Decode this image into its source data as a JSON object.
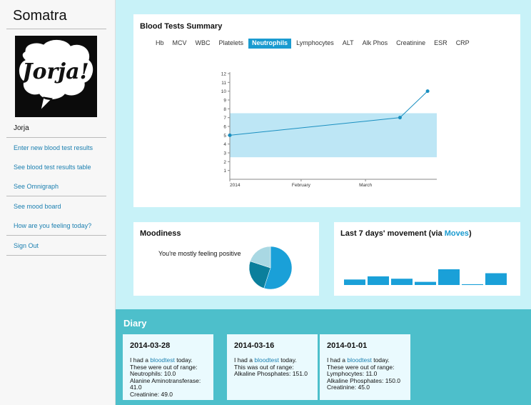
{
  "app": {
    "title": "Somatra"
  },
  "sidebar": {
    "avatar_text": "Jorja!",
    "user_name": "Jorja",
    "links": [
      "Enter new blood test results",
      "See blood test results table",
      "See Omnigraph",
      "See mood board",
      "How are you feeling today?",
      "Sign Out"
    ]
  },
  "blood_tests": {
    "title": "Blood Tests Summary",
    "tabs": [
      "Hb",
      "MCV",
      "WBC",
      "Platelets",
      "Neutrophils",
      "Lymphocytes",
      "ALT",
      "Alk Phos",
      "Creatinine",
      "ESR",
      "CRP"
    ],
    "active_tab": "Neutrophils"
  },
  "chart_data": {
    "type": "line",
    "x_tick_labels": [
      "2014",
      "February",
      "March"
    ],
    "x": [
      "2014-01-01",
      "2014-03-16",
      "2014-03-28"
    ],
    "y": [
      5.0,
      7.0,
      10.0
    ],
    "ylim": [
      0,
      12
    ],
    "y_ticks": [
      1,
      2,
      3,
      4,
      5,
      6,
      7,
      8,
      9,
      10,
      11,
      12
    ],
    "normal_range": [
      2.5,
      7.5
    ],
    "colors": {
      "line": "#1a8fc0",
      "range": "#bde6f5"
    }
  },
  "moodiness": {
    "title": "Moodiness",
    "summary": "You're mostly feeling positive",
    "slices": [
      {
        "value": 0.55,
        "color": "#1aa0d8"
      },
      {
        "value": 0.25,
        "color": "#0b7f9c"
      },
      {
        "value": 0.2,
        "color": "#a9d8e3"
      }
    ]
  },
  "movement": {
    "title_prefix": "Last 7 days' movement (via ",
    "title_link": "Moves",
    "title_suffix": ")",
    "bar_values": [
      0.35,
      0.55,
      0.4,
      0.2,
      1.0,
      0.05,
      0.75
    ],
    "color": "#1aa0d8"
  },
  "diary": {
    "title": "Diary",
    "entries": [
      {
        "date": "2014-03-28",
        "pre": "I had a ",
        "link": "bloodtest",
        "post": " today.",
        "status": "These were out of range:",
        "items": [
          "Neutrophils: 10.0",
          "Alanine Aminotransferase: 41.0",
          "Creatinine: 49.0"
        ]
      },
      {
        "date": "2014-03-16",
        "pre": "I had a ",
        "link": "bloodtest",
        "post": " today.",
        "status": "This was out of range:",
        "items": [
          "Alkaline Phosphates: 151.0"
        ]
      },
      {
        "date": "2014-01-01",
        "pre": "I had a ",
        "link": "bloodtest",
        "post": " today.",
        "status": "These were out of range:",
        "items": [
          "Lymphocytes: 11.0",
          "Alkaline Phosphates: 150.0",
          "Creatinine: 45.0"
        ]
      }
    ]
  }
}
